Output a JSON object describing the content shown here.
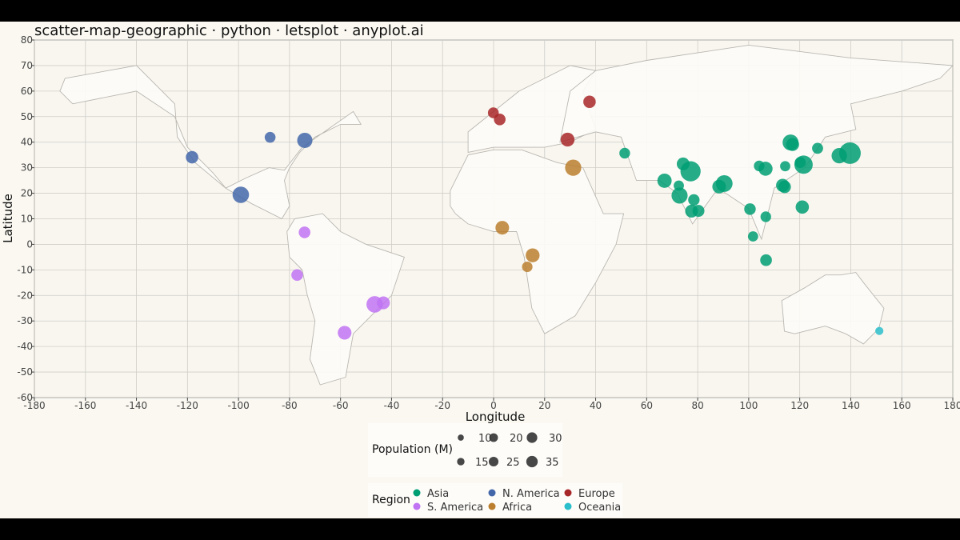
{
  "chart_data": {
    "type": "scatter",
    "title": "scatter-map-geographic · python · letsplot · anyplot.ai",
    "xlabel": "Longitude",
    "ylabel": "Latitude",
    "xlim": [
      -180,
      180
    ],
    "ylim": [
      -60,
      80
    ],
    "x_ticks": [
      -180,
      -160,
      -140,
      -120,
      -100,
      -80,
      -60,
      -40,
      -20,
      0,
      20,
      40,
      60,
      80,
      100,
      120,
      140,
      160,
      180
    ],
    "y_ticks": [
      -60,
      -50,
      -40,
      -30,
      -20,
      -10,
      0,
      10,
      20,
      30,
      40,
      50,
      60,
      70,
      80
    ],
    "grid": true,
    "background_map": "simplified continent outlines",
    "colors": {
      "Asia": "#009e73",
      "N. America": "#4467aa",
      "Europe": "#a82729",
      "S. America": "#c073f2",
      "Africa": "#bb7f2f",
      "Oceania": "#2bbecb"
    },
    "legend_size": {
      "title": "Population (M)",
      "values": [
        10,
        20,
        30,
        15,
        25,
        35
      ]
    },
    "legend_region": {
      "title": "Region",
      "entries": [
        "Asia",
        "N. America",
        "Europe",
        "S. America",
        "Africa",
        "Oceania"
      ]
    },
    "points": [
      {
        "region": "N. America",
        "lon": -118.2,
        "lat": 34.1,
        "pop": 12.5
      },
      {
        "region": "N. America",
        "lon": -99.1,
        "lat": 19.4,
        "pop": 21.8
      },
      {
        "region": "N. America",
        "lon": -87.6,
        "lat": 41.9,
        "pop": 9.5
      },
      {
        "region": "N. America",
        "lon": -74.0,
        "lat": 40.7,
        "pop": 18.8
      },
      {
        "region": "S. America",
        "lon": -74.1,
        "lat": 4.7,
        "pop": 11.0
      },
      {
        "region": "S. America",
        "lon": -77.0,
        "lat": -12.0,
        "pop": 11.0
      },
      {
        "region": "S. America",
        "lon": -46.6,
        "lat": -23.5,
        "pop": 22.0
      },
      {
        "region": "S. America",
        "lon": -43.2,
        "lat": -22.9,
        "pop": 13.5
      },
      {
        "region": "S. America",
        "lon": -58.4,
        "lat": -34.6,
        "pop": 15.2
      },
      {
        "region": "Europe",
        "lon": -0.1,
        "lat": 51.5,
        "pop": 9.5
      },
      {
        "region": "Europe",
        "lon": 2.4,
        "lat": 48.9,
        "pop": 11.0
      },
      {
        "region": "Europe",
        "lon": 37.6,
        "lat": 55.8,
        "pop": 12.5
      },
      {
        "region": "Europe",
        "lon": 29.0,
        "lat": 41.0,
        "pop": 15.5
      },
      {
        "region": "Africa",
        "lon": 31.2,
        "lat": 30.0,
        "pop": 21.3
      },
      {
        "region": "Africa",
        "lon": 3.4,
        "lat": 6.5,
        "pop": 15.0
      },
      {
        "region": "Africa",
        "lon": 15.3,
        "lat": -4.3,
        "pop": 15.6
      },
      {
        "region": "Africa",
        "lon": 13.2,
        "lat": -8.8,
        "pop": 8.9
      },
      {
        "region": "Asia",
        "lon": 51.4,
        "lat": 35.7,
        "pop": 9.3
      },
      {
        "region": "Asia",
        "lon": 67.0,
        "lat": 24.9,
        "pop": 16.5
      },
      {
        "region": "Asia",
        "lon": 74.3,
        "lat": 31.5,
        "pop": 13.1
      },
      {
        "region": "Asia",
        "lon": 77.2,
        "lat": 28.6,
        "pop": 32.9
      },
      {
        "region": "Asia",
        "lon": 72.9,
        "lat": 19.1,
        "pop": 20.9
      },
      {
        "region": "Asia",
        "lon": 72.6,
        "lat": 23.0,
        "pop": 8.5
      },
      {
        "region": "Asia",
        "lon": 78.5,
        "lat": 17.4,
        "pop": 10.5
      },
      {
        "region": "Asia",
        "lon": 77.6,
        "lat": 13.0,
        "pop": 13.2
      },
      {
        "region": "Asia",
        "lon": 80.3,
        "lat": 13.1,
        "pop": 11.5
      },
      {
        "region": "Asia",
        "lon": 88.4,
        "lat": 22.6,
        "pop": 14.9
      },
      {
        "region": "Asia",
        "lon": 90.4,
        "lat": 23.8,
        "pop": 22.5
      },
      {
        "region": "Asia",
        "lon": 100.5,
        "lat": 13.8,
        "pop": 10.7
      },
      {
        "region": "Asia",
        "lon": 106.7,
        "lat": 10.8,
        "pop": 9.1
      },
      {
        "region": "Asia",
        "lon": 101.7,
        "lat": 3.1,
        "pop": 8.4
      },
      {
        "region": "Asia",
        "lon": 106.8,
        "lat": -6.2,
        "pop": 11.1
      },
      {
        "region": "Asia",
        "lon": 104.1,
        "lat": 30.7,
        "pop": 9.1
      },
      {
        "region": "Asia",
        "lon": 106.6,
        "lat": 29.6,
        "pop": 15.9
      },
      {
        "region": "Asia",
        "lon": 113.3,
        "lat": 23.1,
        "pop": 13.9
      },
      {
        "region": "Asia",
        "lon": 114.1,
        "lat": 22.5,
        "pop": 12.5
      },
      {
        "region": "Asia",
        "lon": 114.3,
        "lat": 30.6,
        "pop": 8.4
      },
      {
        "region": "Asia",
        "lon": 116.4,
        "lat": 39.9,
        "pop": 20.5
      },
      {
        "region": "Asia",
        "lon": 117.2,
        "lat": 39.1,
        "pop": 13.6
      },
      {
        "region": "Asia",
        "lon": 121.5,
        "lat": 31.2,
        "pop": 27.1
      },
      {
        "region": "Asia",
        "lon": 120.2,
        "lat": 32.0,
        "pop": 10.0
      },
      {
        "region": "Asia",
        "lon": 121.0,
        "lat": 14.6,
        "pop": 14.2
      },
      {
        "region": "Asia",
        "lon": 127.0,
        "lat": 37.6,
        "pop": 9.8
      },
      {
        "region": "Asia",
        "lon": 135.5,
        "lat": 34.7,
        "pop": 19.1
      },
      {
        "region": "Asia",
        "lon": 139.7,
        "lat": 35.7,
        "pop": 37.4
      },
      {
        "region": "Oceania",
        "lon": 151.2,
        "lat": -33.9,
        "pop": 5.3
      }
    ]
  }
}
